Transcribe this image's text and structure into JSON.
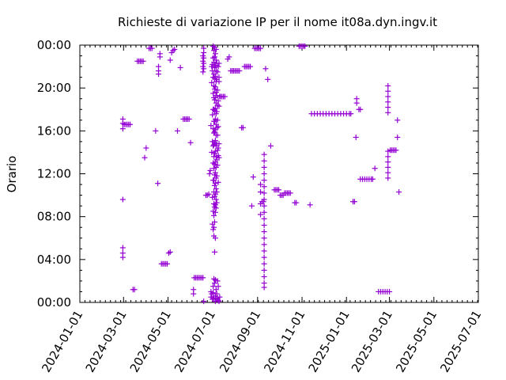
{
  "chart_data": {
    "type": "scatter",
    "title": "Richieste di variazione IP per il nome it08a.dyn.ingv.it",
    "xlabel": "",
    "ylabel": "Orario",
    "marker_color": "#9400d3",
    "marker": "plus",
    "grid": false,
    "x_ticks": [
      "2024-01-01",
      "2024-03-01",
      "2024-05-01",
      "2024-07-01",
      "2024-09-01",
      "2024-11-01",
      "2025-01-01",
      "2025-03-01",
      "2025-05-01",
      "2025-07-01"
    ],
    "y_ticks": [
      "00:00",
      "04:00",
      "08:00",
      "12:00",
      "16:00",
      "20:00",
      "00:00"
    ],
    "xlim": [
      "2024-01-01",
      "2025-07-01"
    ],
    "ylim": [
      0,
      24
    ],
    "points": [
      [
        "2024-02-29",
        9.6
      ],
      [
        "2024-02-29",
        4.2
      ],
      [
        "2024-02-29",
        4.6
      ],
      [
        "2024-02-29",
        5.1
      ],
      [
        "2024-02-29",
        16.2
      ],
      [
        "2024-02-29",
        16.7
      ],
      [
        "2024-02-29",
        17.1
      ],
      [
        "2024-03-02",
        16.6
      ],
      [
        "2024-03-04",
        16.6
      ],
      [
        "2024-03-06",
        16.6
      ],
      [
        "2024-03-08",
        16.6
      ],
      [
        "2024-03-10",
        16.6
      ],
      [
        "2024-03-14",
        1.2
      ],
      [
        "2024-03-16",
        1.2
      ],
      [
        "2024-03-20",
        22.5
      ],
      [
        "2024-03-22",
        22.5
      ],
      [
        "2024-03-24",
        22.5
      ],
      [
        "2024-03-26",
        22.5
      ],
      [
        "2024-03-28",
        22.5
      ],
      [
        "2024-03-30",
        13.5
      ],
      [
        "2024-04-01",
        14.4
      ],
      [
        "2024-04-05",
        23.7
      ],
      [
        "2024-04-07",
        23.7
      ],
      [
        "2024-04-09",
        23.7
      ],
      [
        "2024-04-14",
        16.0
      ],
      [
        "2024-04-17",
        11.1
      ],
      [
        "2024-04-18",
        22.0
      ],
      [
        "2024-04-18",
        21.6
      ],
      [
        "2024-04-18",
        21.3
      ],
      [
        "2024-04-20",
        22.9
      ],
      [
        "2024-04-20",
        23.2
      ],
      [
        "2024-04-22",
        3.6
      ],
      [
        "2024-04-24",
        3.6
      ],
      [
        "2024-04-26",
        3.6
      ],
      [
        "2024-04-28",
        3.6
      ],
      [
        "2024-04-30",
        3.6
      ],
      [
        "2024-05-02",
        4.6
      ],
      [
        "2024-05-04",
        4.7
      ],
      [
        "2024-05-04",
        22.6
      ],
      [
        "2024-05-06",
        23.3
      ],
      [
        "2024-05-08",
        23.5
      ],
      [
        "2024-05-10",
        23.6
      ],
      [
        "2024-05-14",
        16.0
      ],
      [
        "2024-05-18",
        21.9
      ],
      [
        "2024-05-22",
        17.1
      ],
      [
        "2024-05-24",
        17.1
      ],
      [
        "2024-05-26",
        17.1
      ],
      [
        "2024-05-28",
        17.1
      ],
      [
        "2024-05-30",
        17.1
      ],
      [
        "2024-06-01",
        14.9
      ],
      [
        "2024-06-05",
        0.8
      ],
      [
        "2024-06-05",
        1.2
      ],
      [
        "2024-06-06",
        2.3
      ],
      [
        "2024-06-08",
        2.3
      ],
      [
        "2024-06-10",
        2.3
      ],
      [
        "2024-06-12",
        2.3
      ],
      [
        "2024-06-14",
        2.3
      ],
      [
        "2024-06-16",
        2.3
      ],
      [
        "2024-06-18",
        2.3
      ],
      [
        "2024-06-18",
        21.5
      ],
      [
        "2024-06-18",
        22.0
      ],
      [
        "2024-06-18",
        22.5
      ],
      [
        "2024-06-18",
        23.0
      ],
      [
        "2024-06-19",
        21.8
      ],
      [
        "2024-06-19",
        22.3
      ],
      [
        "2024-06-19",
        22.8
      ],
      [
        "2024-06-19",
        23.3
      ],
      [
        "2024-06-19",
        23.7
      ],
      [
        "2024-06-19",
        0.1
      ],
      [
        "2024-06-22",
        10.0
      ],
      [
        "2024-06-24",
        10.0
      ],
      [
        "2024-06-26",
        10.1
      ],
      [
        "2024-06-27",
        12.0
      ],
      [
        "2024-06-28",
        12.3
      ],
      [
        "2024-06-29",
        16.5
      ],
      [
        "2024-06-29",
        1.0
      ],
      [
        "2024-06-29",
        0.5
      ],
      [
        "2024-06-30",
        14.0
      ],
      [
        "2024-06-30",
        0.8
      ],
      [
        "2024-06-30",
        22.0
      ],
      [
        "2024-06-30",
        20.5
      ],
      [
        "2024-07-01",
        22.2
      ],
      [
        "2024-07-01",
        21.6
      ],
      [
        "2024-07-01",
        17.5
      ],
      [
        "2024-07-01",
        15.0
      ],
      [
        "2024-07-01",
        9.8
      ],
      [
        "2024-07-01",
        7.3
      ],
      [
        "2024-07-01",
        0.3
      ],
      [
        "2024-07-02",
        23.9
      ],
      [
        "2024-07-02",
        22.8
      ],
      [
        "2024-07-02",
        21.0
      ],
      [
        "2024-07-02",
        19.5
      ],
      [
        "2024-07-02",
        18.0
      ],
      [
        "2024-07-02",
        16.2
      ],
      [
        "2024-07-02",
        14.6
      ],
      [
        "2024-07-02",
        13.0
      ],
      [
        "2024-07-02",
        11.4
      ],
      [
        "2024-07-02",
        8.5
      ],
      [
        "2024-07-02",
        6.8
      ],
      [
        "2024-07-02",
        1.5
      ],
      [
        "2024-07-02",
        0.9
      ],
      [
        "2024-07-03",
        23.5
      ],
      [
        "2024-07-03",
        22.4
      ],
      [
        "2024-07-03",
        21.3
      ],
      [
        "2024-07-03",
        20.2
      ],
      [
        "2024-07-03",
        19.1
      ],
      [
        "2024-07-03",
        18.0
      ],
      [
        "2024-07-03",
        16.9
      ],
      [
        "2024-07-03",
        15.8
      ],
      [
        "2024-07-03",
        14.7
      ],
      [
        "2024-07-03",
        13.6
      ],
      [
        "2024-07-03",
        12.5
      ],
      [
        "2024-07-03",
        11.4
      ],
      [
        "2024-07-03",
        10.3
      ],
      [
        "2024-07-03",
        9.2
      ],
      [
        "2024-07-03",
        8.1
      ],
      [
        "2024-07-03",
        7.0
      ],
      [
        "2024-07-03",
        6.2
      ],
      [
        "2024-07-03",
        2.2
      ],
      [
        "2024-07-03",
        0.4
      ],
      [
        "2024-07-04",
        23.8
      ],
      [
        "2024-07-04",
        22.9
      ],
      [
        "2024-07-04",
        21.9
      ],
      [
        "2024-07-04",
        20.9
      ],
      [
        "2024-07-04",
        19.9
      ],
      [
        "2024-07-04",
        18.9
      ],
      [
        "2024-07-04",
        17.9
      ],
      [
        "2024-07-04",
        16.9
      ],
      [
        "2024-07-04",
        15.9
      ],
      [
        "2024-07-04",
        14.9
      ],
      [
        "2024-07-04",
        13.9
      ],
      [
        "2024-07-04",
        12.9
      ],
      [
        "2024-07-04",
        11.9
      ],
      [
        "2024-07-04",
        10.9
      ],
      [
        "2024-07-04",
        9.9
      ],
      [
        "2024-07-04",
        8.9
      ],
      [
        "2024-07-04",
        7.5
      ],
      [
        "2024-07-04",
        4.7
      ],
      [
        "2024-07-04",
        1.8
      ],
      [
        "2024-07-05",
        23.2
      ],
      [
        "2024-07-05",
        22.1
      ],
      [
        "2024-07-05",
        21.1
      ],
      [
        "2024-07-05",
        20.1
      ],
      [
        "2024-07-05",
        19.1
      ],
      [
        "2024-07-05",
        18.1
      ],
      [
        "2024-07-05",
        17.1
      ],
      [
        "2024-07-05",
        16.1
      ],
      [
        "2024-07-05",
        15.1
      ],
      [
        "2024-07-05",
        14.1
      ],
      [
        "2024-07-05",
        13.1
      ],
      [
        "2024-07-05",
        12.1
      ],
      [
        "2024-07-05",
        11.1
      ],
      [
        "2024-07-05",
        10.1
      ],
      [
        "2024-07-05",
        9.1
      ],
      [
        "2024-07-05",
        8.4
      ],
      [
        "2024-07-05",
        6.0
      ],
      [
        "2024-07-05",
        2.1
      ],
      [
        "2024-07-05",
        0.6
      ],
      [
        "2024-07-05",
        0.1
      ],
      [
        "2024-07-06",
        23.6
      ],
      [
        "2024-07-06",
        22.6
      ],
      [
        "2024-07-06",
        21.6
      ],
      [
        "2024-07-06",
        20.6
      ],
      [
        "2024-07-06",
        19.6
      ],
      [
        "2024-07-06",
        18.6
      ],
      [
        "2024-07-06",
        17.6
      ],
      [
        "2024-07-06",
        16.6
      ],
      [
        "2024-07-06",
        15.6
      ],
      [
        "2024-07-06",
        14.6
      ],
      [
        "2024-07-06",
        13.6
      ],
      [
        "2024-07-06",
        12.6
      ],
      [
        "2024-07-06",
        11.6
      ],
      [
        "2024-07-06",
        10.6
      ],
      [
        "2024-07-06",
        9.6
      ],
      [
        "2024-07-06",
        8.8
      ],
      [
        "2024-07-06",
        1.2
      ],
      [
        "2024-07-06",
        0.3
      ],
      [
        "2024-07-07",
        22.3
      ],
      [
        "2024-07-07",
        20.8
      ],
      [
        "2024-07-07",
        19.3
      ],
      [
        "2024-07-07",
        17.8
      ],
      [
        "2024-07-07",
        16.3
      ],
      [
        "2024-07-07",
        14.8
      ],
      [
        "2024-07-07",
        13.3
      ],
      [
        "2024-07-07",
        11.8
      ],
      [
        "2024-07-07",
        10.3
      ],
      [
        "2024-07-07",
        9.3
      ],
      [
        "2024-07-07",
        0.8
      ],
      [
        "2024-07-08",
        21.5
      ],
      [
        "2024-07-08",
        19.8
      ],
      [
        "2024-07-08",
        18.4
      ],
      [
        "2024-07-08",
        17.0
      ],
      [
        "2024-07-08",
        15.6
      ],
      [
        "2024-07-08",
        14.2
      ],
      [
        "2024-07-08",
        12.8
      ],
      [
        "2024-07-08",
        0.4
      ],
      [
        "2024-07-08",
        2.0
      ],
      [
        "2024-07-09",
        22.0
      ],
      [
        "2024-07-09",
        18.8
      ],
      [
        "2024-07-09",
        16.4
      ],
      [
        "2024-07-09",
        14.4
      ],
      [
        "2024-07-09",
        13.7
      ],
      [
        "2024-07-09",
        11.2
      ],
      [
        "2024-07-09",
        1.5
      ],
      [
        "2024-07-09",
        0.2
      ],
      [
        "2024-07-10",
        22.3
      ],
      [
        "2024-07-10",
        20.6
      ],
      [
        "2024-07-10",
        21.0
      ],
      [
        "2024-07-10",
        18.3
      ],
      [
        "2024-07-10",
        14.8
      ],
      [
        "2024-07-10",
        13.5
      ],
      [
        "2024-07-10",
        0.1
      ],
      [
        "2024-07-11",
        19.2
      ],
      [
        "2024-07-11",
        0.5
      ],
      [
        "2024-07-12",
        19.2
      ],
      [
        "2024-07-14",
        19.2
      ],
      [
        "2024-07-16",
        19.2
      ],
      [
        "2024-07-18",
        19.2
      ],
      [
        "2024-07-22",
        22.7
      ],
      [
        "2024-07-24",
        22.9
      ],
      [
        "2024-07-26",
        21.6
      ],
      [
        "2024-07-28",
        21.6
      ],
      [
        "2024-07-30",
        21.6
      ],
      [
        "2024-08-01",
        21.6
      ],
      [
        "2024-08-03",
        21.6
      ],
      [
        "2024-08-05",
        21.6
      ],
      [
        "2024-08-07",
        21.6
      ],
      [
        "2024-08-10",
        16.3
      ],
      [
        "2024-08-12",
        16.3
      ],
      [
        "2024-08-14",
        22.0
      ],
      [
        "2024-08-16",
        22.0
      ],
      [
        "2024-08-18",
        22.0
      ],
      [
        "2024-08-20",
        22.0
      ],
      [
        "2024-08-22",
        22.0
      ],
      [
        "2024-08-24",
        9.0
      ],
      [
        "2024-08-26",
        11.7
      ],
      [
        "2024-08-28",
        23.7
      ],
      [
        "2024-08-30",
        23.7
      ],
      [
        "2024-09-01",
        23.7
      ],
      [
        "2024-09-03",
        23.7
      ],
      [
        "2024-09-05",
        23.7
      ],
      [
        "2024-09-05",
        10.3
      ],
      [
        "2024-09-05",
        9.2
      ],
      [
        "2024-09-05",
        8.2
      ],
      [
        "2024-09-05",
        11.0
      ],
      [
        "2024-09-07",
        9.4
      ],
      [
        "2024-09-09",
        9.4
      ],
      [
        "2024-09-10",
        13.8
      ],
      [
        "2024-09-10",
        13.2
      ],
      [
        "2024-09-10",
        12.6
      ],
      [
        "2024-09-10",
        12.0
      ],
      [
        "2024-09-10",
        11.4
      ],
      [
        "2024-09-10",
        10.8
      ],
      [
        "2024-09-10",
        10.2
      ],
      [
        "2024-09-10",
        9.6
      ],
      [
        "2024-09-10",
        9.0
      ],
      [
        "2024-09-10",
        8.4
      ],
      [
        "2024-09-10",
        7.8
      ],
      [
        "2024-09-10",
        7.2
      ],
      [
        "2024-09-10",
        6.6
      ],
      [
        "2024-09-10",
        6.0
      ],
      [
        "2024-09-10",
        5.4
      ],
      [
        "2024-09-10",
        4.8
      ],
      [
        "2024-09-10",
        4.2
      ],
      [
        "2024-09-10",
        3.6
      ],
      [
        "2024-09-10",
        3.0
      ],
      [
        "2024-09-10",
        2.4
      ],
      [
        "2024-09-10",
        1.8
      ],
      [
        "2024-09-10",
        1.4
      ],
      [
        "2024-09-12",
        21.8
      ],
      [
        "2024-09-15",
        20.8
      ],
      [
        "2024-09-19",
        14.6
      ],
      [
        "2024-09-24",
        10.5
      ],
      [
        "2024-09-26",
        10.5
      ],
      [
        "2024-09-28",
        10.5
      ],
      [
        "2024-09-30",
        10.5
      ],
      [
        "2024-10-02",
        10.0
      ],
      [
        "2024-10-04",
        10.0
      ],
      [
        "2024-10-06",
        10.0
      ],
      [
        "2024-10-08",
        10.2
      ],
      [
        "2024-10-10",
        10.2
      ],
      [
        "2024-10-12",
        10.2
      ],
      [
        "2024-10-14",
        10.2
      ],
      [
        "2024-10-16",
        10.2
      ],
      [
        "2024-10-22",
        9.3
      ],
      [
        "2024-10-24",
        9.3
      ],
      [
        "2024-10-28",
        23.9
      ],
      [
        "2024-10-30",
        23.9
      ],
      [
        "2024-11-01",
        23.9
      ],
      [
        "2024-11-03",
        23.9
      ],
      [
        "2024-11-05",
        23.9
      ],
      [
        "2024-11-12",
        9.1
      ],
      [
        "2024-11-14",
        17.6
      ],
      [
        "2024-11-18",
        17.6
      ],
      [
        "2024-11-22",
        17.6
      ],
      [
        "2024-11-26",
        17.6
      ],
      [
        "2024-11-30",
        17.6
      ],
      [
        "2024-12-04",
        17.6
      ],
      [
        "2024-12-08",
        17.6
      ],
      [
        "2024-12-12",
        17.6
      ],
      [
        "2024-12-16",
        17.6
      ],
      [
        "2024-12-20",
        17.6
      ],
      [
        "2024-12-24",
        17.6
      ],
      [
        "2024-12-28",
        17.6
      ],
      [
        "2025-01-01",
        17.6
      ],
      [
        "2025-01-05",
        17.6
      ],
      [
        "2025-01-07",
        17.6
      ],
      [
        "2025-01-10",
        9.4
      ],
      [
        "2025-01-12",
        9.4
      ],
      [
        "2025-01-14",
        15.4
      ],
      [
        "2025-01-15",
        18.6
      ],
      [
        "2025-01-15",
        19.0
      ],
      [
        "2025-01-18",
        18.0
      ],
      [
        "2025-01-20",
        18.0
      ],
      [
        "2025-01-20",
        11.5
      ],
      [
        "2025-01-23",
        11.5
      ],
      [
        "2025-01-26",
        11.5
      ],
      [
        "2025-01-29",
        11.5
      ],
      [
        "2025-02-01",
        11.5
      ],
      [
        "2025-02-04",
        11.5
      ],
      [
        "2025-02-06",
        11.5
      ],
      [
        "2025-02-09",
        12.5
      ],
      [
        "2025-02-14",
        1.0
      ],
      [
        "2025-02-17",
        1.0
      ],
      [
        "2025-02-20",
        1.0
      ],
      [
        "2025-02-23",
        1.0
      ],
      [
        "2025-02-26",
        1.0
      ],
      [
        "2025-03-01",
        1.0
      ],
      [
        "2025-02-27",
        20.2
      ],
      [
        "2025-02-27",
        19.7
      ],
      [
        "2025-02-27",
        19.2
      ],
      [
        "2025-02-27",
        18.7
      ],
      [
        "2025-02-27",
        18.2
      ],
      [
        "2025-02-27",
        17.7
      ],
      [
        "2025-02-27",
        14.1
      ],
      [
        "2025-02-27",
        13.6
      ],
      [
        "2025-02-27",
        13.1
      ],
      [
        "2025-02-27",
        12.6
      ],
      [
        "2025-02-27",
        12.1
      ],
      [
        "2025-02-27",
        11.6
      ],
      [
        "2025-03-02",
        14.2
      ],
      [
        "2025-03-04",
        14.2
      ],
      [
        "2025-03-06",
        14.2
      ],
      [
        "2025-03-08",
        14.2
      ],
      [
        "2025-03-10",
        14.2
      ],
      [
        "2025-03-12",
        17.0
      ],
      [
        "2025-03-12",
        15.4
      ],
      [
        "2025-03-14",
        10.3
      ]
    ]
  }
}
